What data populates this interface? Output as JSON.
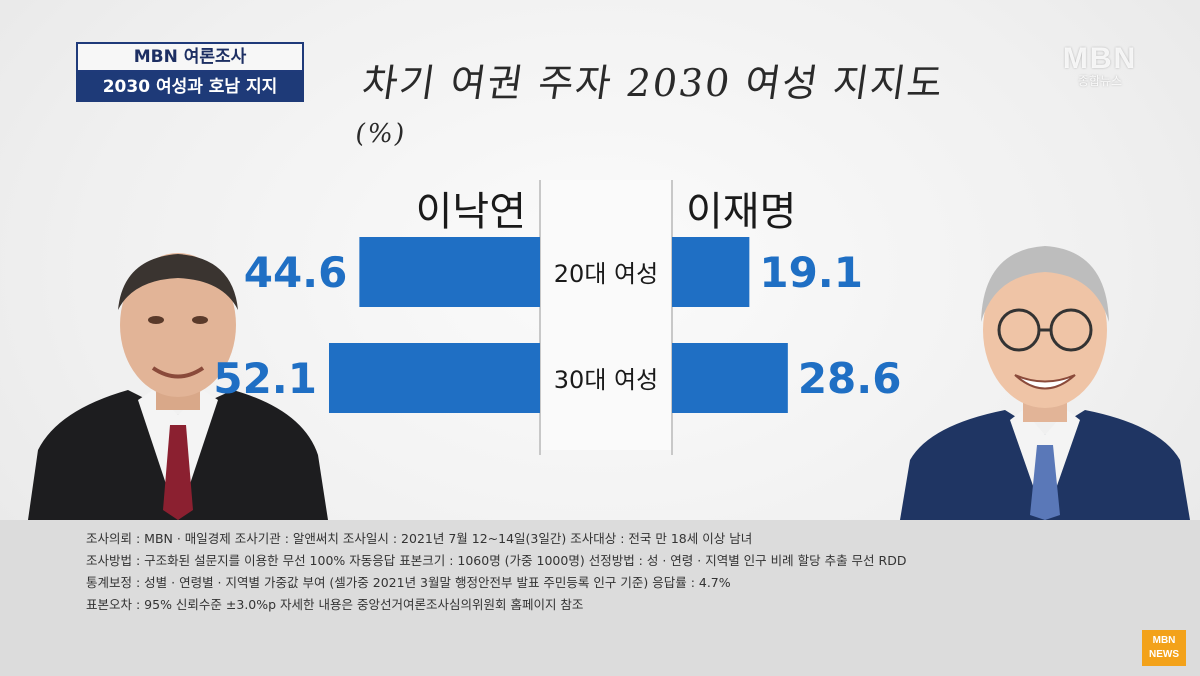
{
  "badge": {
    "top": "MBN 여론조사",
    "bottom": "2030 여성과 호남 지지"
  },
  "logo": {
    "main": "MBN",
    "sub": "종합뉴스"
  },
  "title": {
    "main": "차기 여권 주자 2030 여성 지지도",
    "unit": "(%)"
  },
  "colors": {
    "bar": "#1f6fc4",
    "value": "#1f6fc4",
    "badge": "#1e3a78"
  },
  "chart_data": {
    "type": "bar",
    "categories": [
      "20대 여성",
      "30대 여성"
    ],
    "series": [
      {
        "name": "이낙연",
        "values": [
          44.6,
          52.1
        ]
      },
      {
        "name": "이재명",
        "values": [
          19.1,
          28.6
        ]
      }
    ]
  },
  "notes": {
    "line1": "조사의뢰 : MBN · 매일경제    조사기관 : 알앤써치    조사일시 : 2021년 7월 12~14일(3일간)    조사대상 : 전국 만 18세 이상 남녀",
    "line2": "조사방법 : 구조화된 설문지를 이용한 무선 100% 자동응답    표본크기 : 1060명 (가중 1000명)    선정방법 : 성 · 연령 · 지역별 인구 비례 할당 추출 무선 RDD",
    "line3": "통계보정 : 성별 · 연령별 · 지역별 가중값 부여 (셀가중 2021년 3월말 행정안전부 발표 주민등록 인구 기준)    응답률 : 4.7%",
    "line4": "표본오차 : 95% 신뢰수준 ±3.0%p    자세한 내용은 중앙선거여론조사심의위원회 홈페이지 참조"
  },
  "corner_logo": {
    "line1": "MBN",
    "line2": "NEWS"
  }
}
